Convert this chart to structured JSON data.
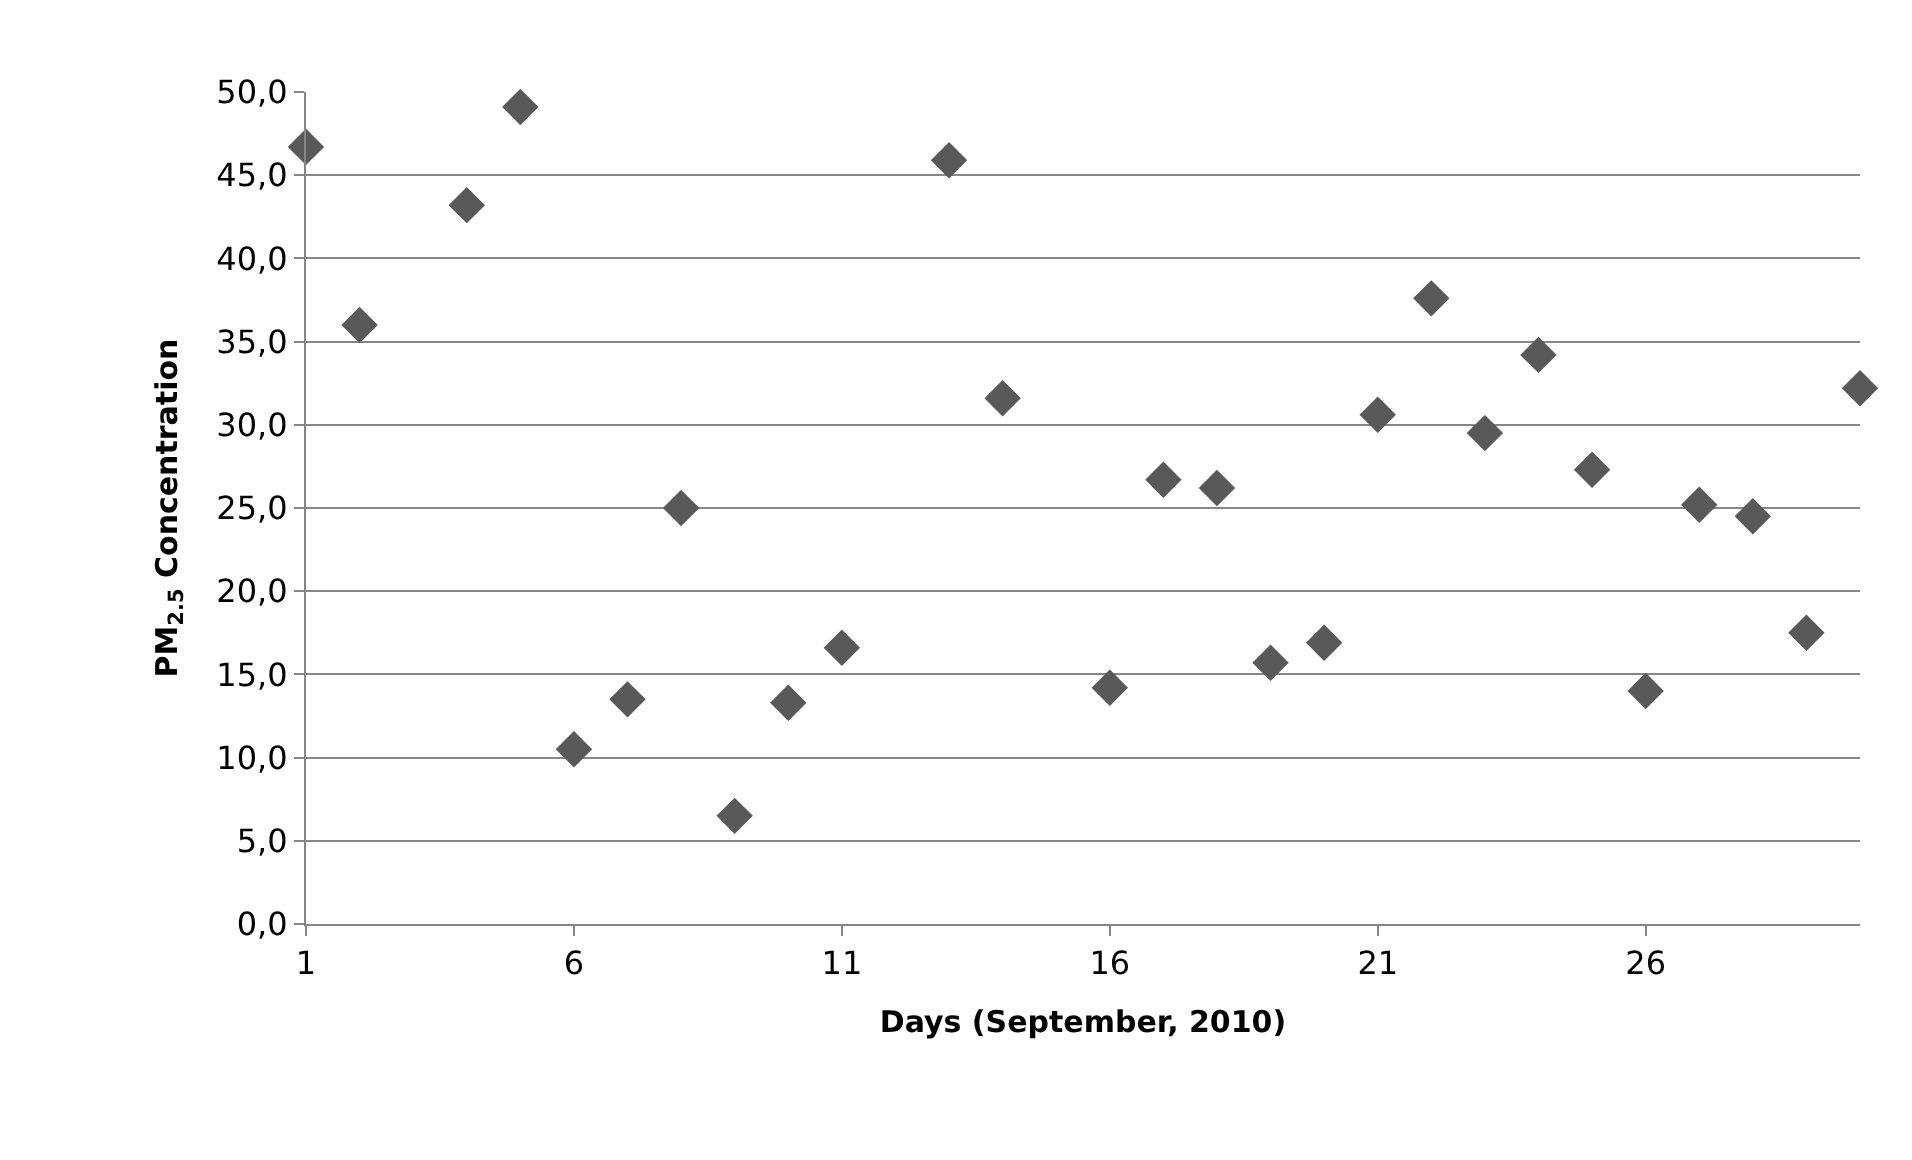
{
  "chart_data": {
    "type": "scatter",
    "xlabel": "Days (September, 2010)",
    "ylabel": "PM$_{2.5}$ Concentration",
    "x": [
      1,
      2,
      4,
      5,
      6,
      7,
      8,
      9,
      10,
      11,
      13,
      14,
      16,
      17,
      18,
      19,
      20,
      21,
      22,
      23,
      24,
      25,
      26,
      27,
      28,
      29,
      30
    ],
    "series": [
      {
        "color": "#595959",
        "values": [
          46.7,
          36.0,
          43.2,
          49.1,
          10.5,
          13.5,
          25.0,
          6.5,
          13.3,
          16.6,
          45.9,
          31.6,
          14.2,
          26.7,
          26.2,
          15.7,
          16.9,
          30.6,
          37.6,
          29.5,
          34.2,
          27.3,
          14.0,
          25.2,
          24.5,
          17.5,
          32.2
        ]
      }
    ],
    "xlim": [
      1,
      30
    ],
    "xticks": [
      1,
      6,
      11,
      16,
      21,
      26
    ],
    "ylim": [
      0,
      50
    ],
    "yticks": [
      {
        "value": 0,
        "label": "0,0"
      },
      {
        "value": 5,
        "label": "5,0"
      },
      {
        "value": 10,
        "label": "10,0"
      },
      {
        "value": 15,
        "label": "15,0"
      },
      {
        "value": 20,
        "label": "20,0"
      },
      {
        "value": 25,
        "label": "25,0"
      },
      {
        "value": 30,
        "label": "30,0"
      },
      {
        "value": 35,
        "label": "35,0"
      },
      {
        "value": 40,
        "label": "40,0"
      },
      {
        "value": 45,
        "label": "45,0"
      },
      {
        "value": 50,
        "label": "50,0"
      }
    ],
    "grid": "y",
    "marker": "diamond"
  }
}
